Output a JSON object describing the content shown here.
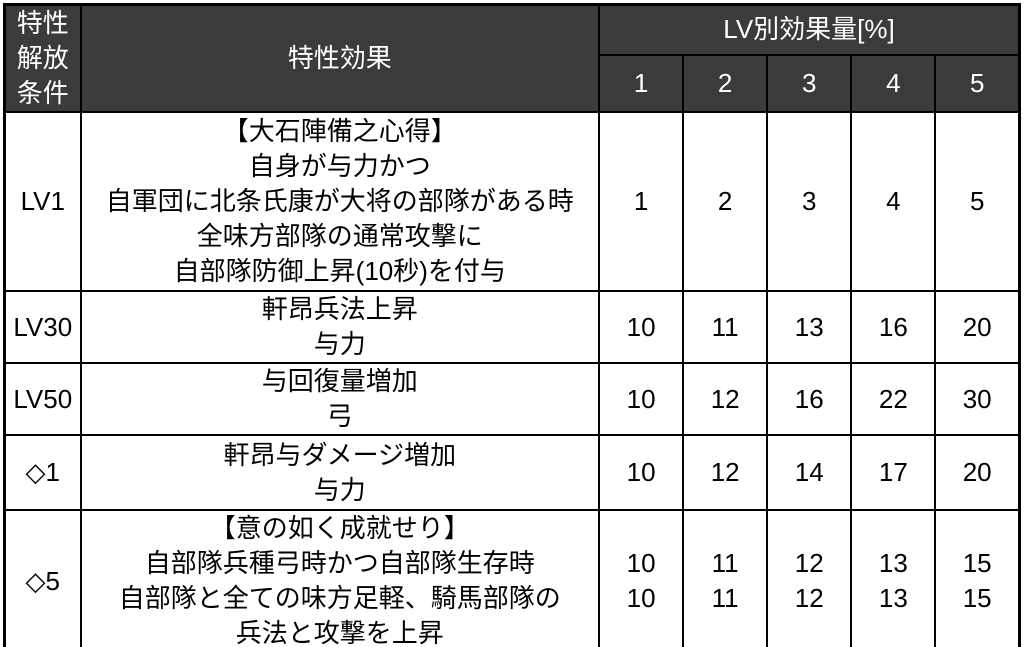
{
  "table": {
    "colors": {
      "header_bg": "#3b3b3b",
      "header_text": "#ffffff",
      "border": "#000000",
      "body_bg": "#ffffff",
      "body_text": "#000000"
    },
    "header": {
      "condition": "特性\n解放\n条件",
      "effect": "特性効果",
      "level_group": "LV別効果量[%]",
      "level_labels": [
        "1",
        "2",
        "3",
        "4",
        "5"
      ]
    },
    "rows": [
      {
        "condition": "LV1",
        "effect": "【大石陣備之心得】\n自身が与力かつ\n自軍団に北条氏康が大将の部隊がある時\n全味方部隊の通常攻撃に\n自部隊防御上昇(10秒)を付与",
        "values": [
          "1",
          "2",
          "3",
          "4",
          "5"
        ]
      },
      {
        "condition": "LV30",
        "effect": "軒昂兵法上昇\n与力",
        "values": [
          "10",
          "11",
          "13",
          "16",
          "20"
        ]
      },
      {
        "condition": "LV50",
        "effect": "与回復量増加\n弓",
        "values": [
          "10",
          "12",
          "16",
          "22",
          "30"
        ]
      },
      {
        "condition": "◇1",
        "effect": "軒昂与ダメージ増加\n与力",
        "values": [
          "10",
          "12",
          "14",
          "17",
          "20"
        ]
      },
      {
        "condition": "◇5",
        "effect": "【意の如く成就せり】\n自部隊兵種弓時かつ自部隊生存時\n自部隊と全ての味方足軽、騎馬部隊の\n兵法と攻撃を上昇",
        "values": [
          "10\n10",
          "11\n11",
          "12\n12",
          "13\n13",
          "15\n15"
        ]
      }
    ]
  }
}
